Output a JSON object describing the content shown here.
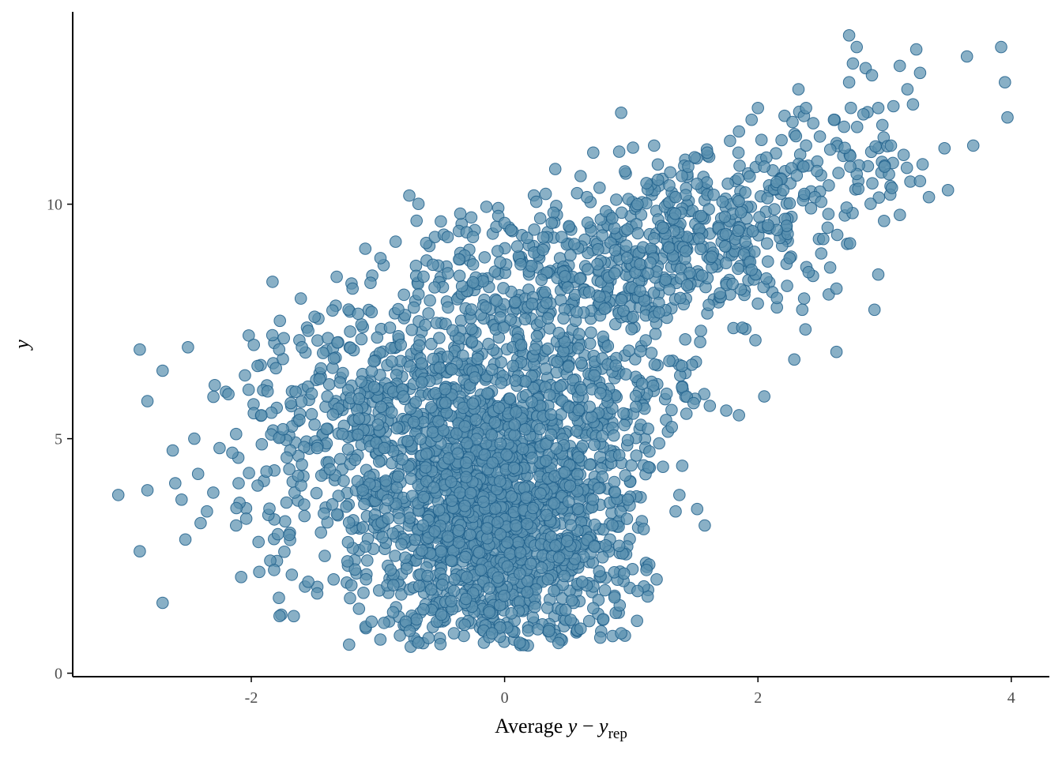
{
  "colors": {
    "point_fill": "#5b91b0",
    "point_stroke": "#1f5f8b",
    "axis": "#000000",
    "tick_text": "#4d4d4d"
  },
  "chart_data": {
    "type": "scatter",
    "title": "",
    "xlabel": "Average y − y_rep",
    "ylabel": "y",
    "xlim": [
      -3.4,
      4.3
    ],
    "ylim": [
      -0.15,
      14.15
    ],
    "x_ticks": [
      -2,
      0,
      2,
      4
    ],
    "y_ticks": [
      0,
      5,
      10
    ],
    "grid": false,
    "legend": "none",
    "n_points_approx": 3000,
    "series": [
      {
        "points": [
          [
            -3.05,
            3.8
          ],
          [
            -2.88,
            6.9
          ],
          [
            -2.82,
            5.8
          ],
          [
            -2.82,
            3.9
          ],
          [
            -2.88,
            2.6
          ],
          [
            -2.7,
            6.45
          ],
          [
            -2.7,
            1.5
          ],
          [
            -2.62,
            4.75
          ],
          [
            -2.6,
            4.05
          ],
          [
            -2.55,
            3.7
          ],
          [
            -2.52,
            2.85
          ],
          [
            -2.5,
            6.95
          ],
          [
            -2.45,
            5.0
          ],
          [
            -2.42,
            4.25
          ],
          [
            -2.4,
            3.2
          ],
          [
            -2.35,
            3.45
          ],
          [
            -2.3,
            3.85
          ],
          [
            -2.25,
            4.8
          ],
          [
            -2.2,
            6.0
          ],
          [
            -2.18,
            5.95
          ],
          [
            -2.15,
            4.7
          ],
          [
            -2.12,
            5.1
          ],
          [
            -2.1,
            4.05
          ],
          [
            -2.12,
            3.15
          ],
          [
            -2.08,
            2.05
          ],
          [
            -2.05,
            6.35
          ],
          [
            -2.02,
            7.2
          ],
          [
            -1.98,
            7.0
          ],
          [
            -1.95,
            6.55
          ],
          [
            -1.92,
            5.5
          ],
          [
            -1.9,
            4.1
          ],
          [
            -1.95,
            4.0
          ],
          [
            -1.88,
            4.3
          ],
          [
            -1.85,
            2.4
          ],
          [
            -1.82,
            2.2
          ],
          [
            -1.78,
            6.9
          ],
          [
            -1.75,
            5.2
          ],
          [
            -1.72,
            4.6
          ],
          [
            -1.7,
            4.35
          ],
          [
            -1.7,
            2.95
          ],
          [
            -1.68,
            2.1
          ],
          [
            -1.65,
            6.0
          ],
          [
            -1.62,
            5.4
          ],
          [
            -1.6,
            4.45
          ],
          [
            -1.58,
            3.35
          ],
          [
            -1.55,
            1.95
          ],
          [
            -1.55,
            7.3
          ],
          [
            -1.5,
            5.3
          ],
          [
            -1.48,
            4.8
          ],
          [
            -1.45,
            3.0
          ],
          [
            -1.42,
            2.5
          ],
          [
            -1.62,
            7.1
          ],
          [
            -1.4,
            5.9
          ],
          [
            -1.38,
            4.35
          ],
          [
            -1.36,
            3.6
          ],
          [
            -1.35,
            2.0
          ],
          [
            -1.32,
            7.05
          ],
          [
            -1.3,
            6.2
          ],
          [
            -1.28,
            5.1
          ],
          [
            -1.27,
            4.1
          ],
          [
            -1.25,
            3.55
          ],
          [
            -1.22,
            1.6
          ],
          [
            -1.6,
            6.95
          ],
          [
            -1.15,
            5.85
          ],
          [
            -1.18,
            4.55
          ],
          [
            -1.12,
            3.9
          ],
          [
            -1.1,
            2.7
          ],
          [
            -1.2,
            8.2
          ],
          [
            -1.05,
            7.7
          ],
          [
            -1.03,
            6.1
          ],
          [
            -1.0,
            5.3
          ],
          [
            -1.1,
            9.05
          ],
          [
            -0.98,
            8.85
          ],
          [
            -0.95,
            4.8
          ],
          [
            -0.92,
            3.3
          ],
          [
            -0.9,
            2.2
          ],
          [
            -0.88,
            1.3
          ],
          [
            -0.86,
            9.2
          ],
          [
            -0.82,
            7.0
          ],
          [
            -0.8,
            5.9
          ],
          [
            -0.78,
            1.1
          ],
          [
            -0.75,
            0.9
          ],
          [
            -1.48,
            1.7
          ],
          [
            -1.5,
            7.6
          ],
          [
            -1.45,
            6.5
          ],
          [
            -0.55,
            9.3
          ],
          [
            -0.48,
            9.35
          ],
          [
            -0.45,
            9.3
          ],
          [
            -0.35,
            9.8
          ],
          [
            -0.3,
            9.4
          ],
          [
            -0.25,
            9.3
          ],
          [
            -0.05,
            9.75
          ],
          [
            0.0,
            9.6
          ],
          [
            0.05,
            9.45
          ],
          [
            0.1,
            9.1
          ],
          [
            0.25,
            10.05
          ],
          [
            0.4,
            10.75
          ],
          [
            0.45,
            9.3
          ],
          [
            0.55,
            9.15
          ],
          [
            0.6,
            10.6
          ],
          [
            0.65,
            10.15
          ],
          [
            0.7,
            11.1
          ],
          [
            0.75,
            10.35
          ],
          [
            0.8,
            9.85
          ],
          [
            0.85,
            9.7
          ],
          [
            0.92,
            11.95
          ],
          [
            0.95,
            10.7
          ],
          [
            1.05,
            10.0
          ],
          [
            1.12,
            10.45
          ],
          [
            1.18,
            11.25
          ],
          [
            1.25,
            9.5
          ],
          [
            1.3,
            10.4
          ],
          [
            1.35,
            10.15
          ],
          [
            1.4,
            10.6
          ],
          [
            1.45,
            10.8
          ],
          [
            1.5,
            11.0
          ],
          [
            1.55,
            9.75
          ],
          [
            1.6,
            11.1
          ],
          [
            1.65,
            10.2
          ],
          [
            1.72,
            10.05
          ],
          [
            1.78,
            11.35
          ],
          [
            1.85,
            11.55
          ],
          [
            1.9,
            10.25
          ],
          [
            1.95,
            11.8
          ],
          [
            2.0,
            12.05
          ],
          [
            2.05,
            10.8
          ],
          [
            2.08,
            9.5
          ],
          [
            2.15,
            9.45
          ],
          [
            2.2,
            10.3
          ],
          [
            2.3,
            11.45
          ],
          [
            2.32,
            12.45
          ],
          [
            2.38,
            12.05
          ],
          [
            2.45,
            10.15
          ],
          [
            2.5,
            10.05
          ],
          [
            2.55,
            9.5
          ],
          [
            2.6,
            11.8
          ],
          [
            2.68,
            11.65
          ],
          [
            2.72,
            12.6
          ],
          [
            2.75,
            13.0
          ],
          [
            2.78,
            13.35
          ],
          [
            2.85,
            12.9
          ],
          [
            2.9,
            12.75
          ],
          [
            2.95,
            12.05
          ],
          [
            3.0,
            10.8
          ],
          [
            3.05,
            11.25
          ],
          [
            3.12,
            12.95
          ],
          [
            3.18,
            12.45
          ],
          [
            3.25,
            13.3
          ],
          [
            3.28,
            12.8
          ],
          [
            3.3,
            10.85
          ],
          [
            3.35,
            10.15
          ],
          [
            3.5,
            10.3
          ],
          [
            3.65,
            13.15
          ],
          [
            3.7,
            11.25
          ],
          [
            3.92,
            13.35
          ],
          [
            3.95,
            12.6
          ],
          [
            3.97,
            11.85
          ],
          [
            2.72,
            13.6
          ],
          [
            2.62,
            6.85
          ],
          [
            2.95,
            8.5
          ],
          [
            2.92,
            7.75
          ],
          [
            2.62,
            8.2
          ],
          [
            2.15,
            7.8
          ],
          [
            2.05,
            5.9
          ],
          [
            1.98,
            7.1
          ],
          [
            1.85,
            5.5
          ],
          [
            1.75,
            5.6
          ],
          [
            1.62,
            5.7
          ],
          [
            1.58,
            3.15
          ],
          [
            1.52,
            3.5
          ],
          [
            1.38,
            3.8
          ],
          [
            1.35,
            3.45
          ],
          [
            1.2,
            2.0
          ],
          [
            1.12,
            2.2
          ],
          [
            1.1,
            1.85
          ],
          [
            1.05,
            1.75
          ],
          [
            0.95,
            0.8
          ],
          [
            0.92,
            0.85
          ],
          [
            0.78,
            1.15
          ],
          [
            0.6,
            0.95
          ],
          [
            0.35,
            0.9
          ],
          [
            0.15,
            0.6
          ],
          [
            0.12,
            0.65
          ],
          [
            -0.1,
            0.85
          ],
          [
            -0.12,
            1.3
          ],
          [
            -0.4,
            0.85
          ],
          [
            -0.5,
            1.25
          ],
          [
            -0.68,
            0.65
          ],
          [
            -0.6,
            0.75
          ],
          [
            -1.05,
            1.1
          ],
          [
            1.22,
            4.9
          ],
          [
            1.32,
            5.25
          ],
          [
            1.25,
            4.4
          ],
          [
            1.4,
            6.55
          ],
          [
            1.55,
            7.3
          ],
          [
            1.7,
            8.1
          ],
          [
            1.8,
            8.3
          ],
          [
            1.95,
            8.6
          ],
          [
            2.25,
            8.85
          ],
          [
            2.4,
            8.55
          ],
          [
            2.5,
            8.95
          ],
          [
            2.35,
            7.75
          ],
          [
            2.15,
            8.0
          ],
          [
            1.9,
            9.2
          ],
          [
            2.08,
            9.55
          ]
        ]
      }
    ]
  },
  "cloud_clusters": [
    {
      "cx": -0.05,
      "cy": 3.2,
      "sx": 0.55,
      "sy": 1.5,
      "n": 1500,
      "xmin": -1.25,
      "xmax": 1.15,
      "ymin": 0.55,
      "ymax": 7.2
    },
    {
      "cx": 0.1,
      "cy": 6.3,
      "sx": 0.75,
      "sy": 1.1,
      "n": 500,
      "xmin": -1.6,
      "xmax": 1.6,
      "ymin": 3.5,
      "ymax": 9.3
    },
    {
      "cx": 0.7,
      "cy": 8.6,
      "sx": 0.7,
      "sy": 0.75,
      "n": 360,
      "xmin": -0.8,
      "xmax": 2.4,
      "ymin": 6.6,
      "ymax": 10.6
    },
    {
      "cx": -1.1,
      "cy": 5.0,
      "sx": 0.5,
      "sy": 1.6,
      "n": 320,
      "xmin": -2.3,
      "xmax": 0.0,
      "ymin": 1.2,
      "ymax": 8.5
    },
    {
      "cx": 1.6,
      "cy": 9.6,
      "sx": 0.55,
      "sy": 0.75,
      "n": 220,
      "xmin": 0.8,
      "xmax": 2.8,
      "ymin": 7.8,
      "ymax": 11.4
    },
    {
      "cx": 2.6,
      "cy": 10.7,
      "sx": 0.5,
      "sy": 0.8,
      "n": 80,
      "xmin": 2.0,
      "xmax": 3.6,
      "ymin": 9.2,
      "ymax": 12.6
    }
  ]
}
